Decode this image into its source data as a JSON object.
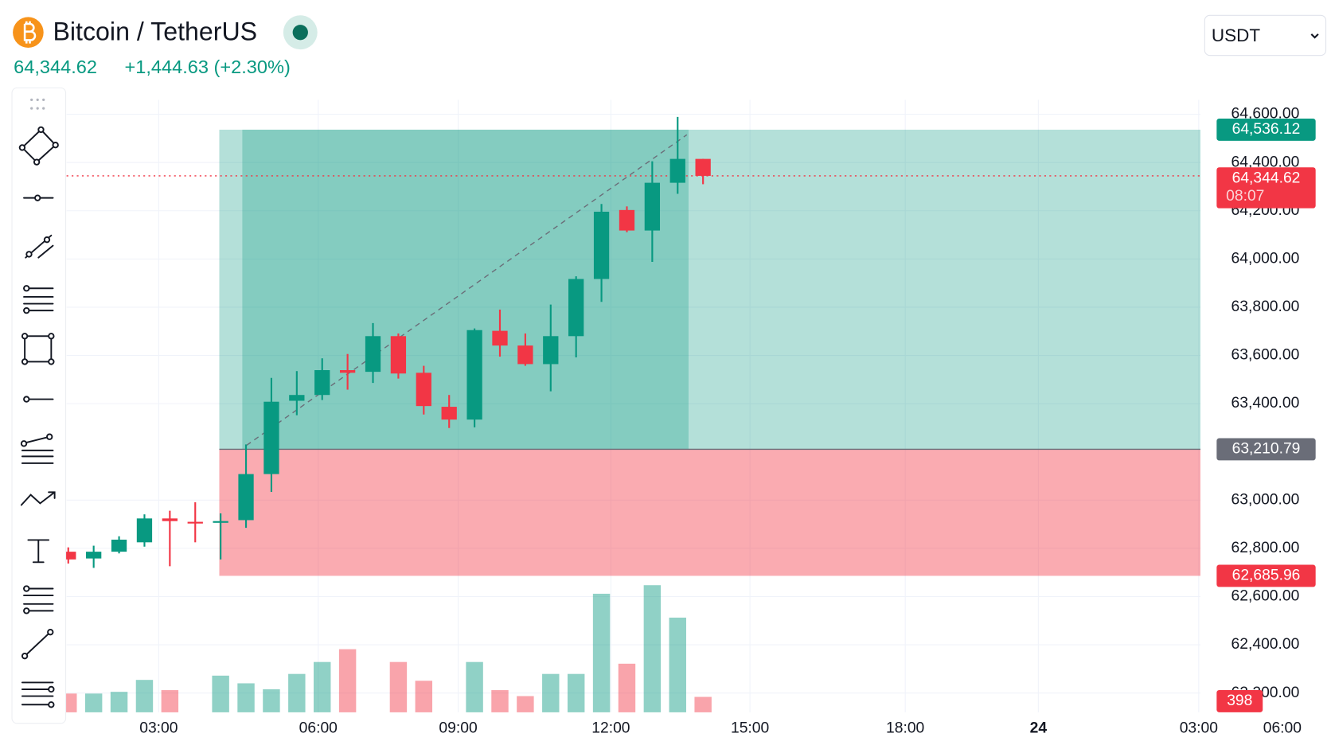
{
  "header": {
    "title": "Bitcoin / TetherUS",
    "price": "64,344.62",
    "change": "+1,444.63 (+2.30%)",
    "currency": "USDT"
  },
  "chart_data": {
    "type": "candlestick",
    "up_color": "#089981",
    "down_color": "#f23645",
    "open": [
      62786,
      62758,
      62786,
      62825,
      62924,
      62910,
      62906,
      62917,
      63108,
      63412,
      63436,
      63539,
      63532,
      63680,
      63528,
      63387,
      63334,
      63702,
      63641,
      63564,
      63680,
      63917,
      64203,
      64118,
      64316,
      64415
    ],
    "high": [
      62804,
      62811,
      62850,
      62941,
      62956,
      62991,
      62945,
      63231,
      63507,
      63535,
      63588,
      63606,
      63734,
      63691,
      63557,
      63436,
      63712,
      63790,
      63691,
      63811,
      63928,
      64228,
      64218,
      64405,
      64589,
      64415
    ],
    "low": [
      62737,
      62719,
      62779,
      62807,
      62726,
      62825,
      62754,
      62885,
      63034,
      63352,
      63415,
      63458,
      63486,
      63504,
      63355,
      63299,
      63302,
      63595,
      63557,
      63451,
      63592,
      63822,
      64111,
      63988,
      64270,
      64310
    ],
    "close": [
      62754,
      62786,
      62836,
      62924,
      62913,
      62903,
      62913,
      63108,
      63408,
      63436,
      63539,
      63528,
      63680,
      63525,
      63390,
      63334,
      63705,
      63641,
      63564,
      63680,
      63917,
      64196,
      64118,
      64316,
      64415,
      64344.62
    ],
    "volume": [
      484,
      484,
      528,
      836,
      572,
      null,
      946,
      748,
      594,
      990,
      1298,
      1628,
      null,
      1298,
      814,
      null,
      1298,
      572,
      418,
      990,
      990,
      3058,
      1254,
      3278,
      2442,
      398
    ],
    "volume_last_label": "398",
    "ylim": [
      62120,
      64660
    ],
    "yticks": [
      {
        "value": 64600,
        "label": "64,600.00"
      },
      {
        "value": 64400,
        "label": "64,400.00"
      },
      {
        "value": 64200,
        "label": "64,200.00"
      },
      {
        "value": 64000,
        "label": "64,000.00"
      },
      {
        "value": 63800,
        "label": "63,800.00"
      },
      {
        "value": 63600,
        "label": "63,600.00"
      },
      {
        "value": 63400,
        "label": "63,400.00"
      },
      {
        "value": 63000,
        "label": "63,000.00"
      },
      {
        "value": 62800,
        "label": "62,800.00"
      },
      {
        "value": 62600,
        "label": "62,600.00"
      },
      {
        "value": 62400,
        "label": "62,400.00"
      },
      {
        "value": 62200,
        "label": "62,200.00"
      }
    ],
    "xticks": [
      "03:00",
      "06:00",
      "09:00",
      "12:00",
      "15:00",
      "18:00",
      "24",
      "03:00",
      "06:00"
    ],
    "current_price": {
      "value": 64344.62,
      "label": "64,344.62"
    },
    "countdown": "08:07",
    "position": {
      "target": {
        "value": 64536.12,
        "label": "64,536.12"
      },
      "entry": {
        "value": 63210.79,
        "label": "63,210.79"
      },
      "stop": {
        "value": 62685.96,
        "label": "62,685.96"
      }
    },
    "grid": true
  }
}
